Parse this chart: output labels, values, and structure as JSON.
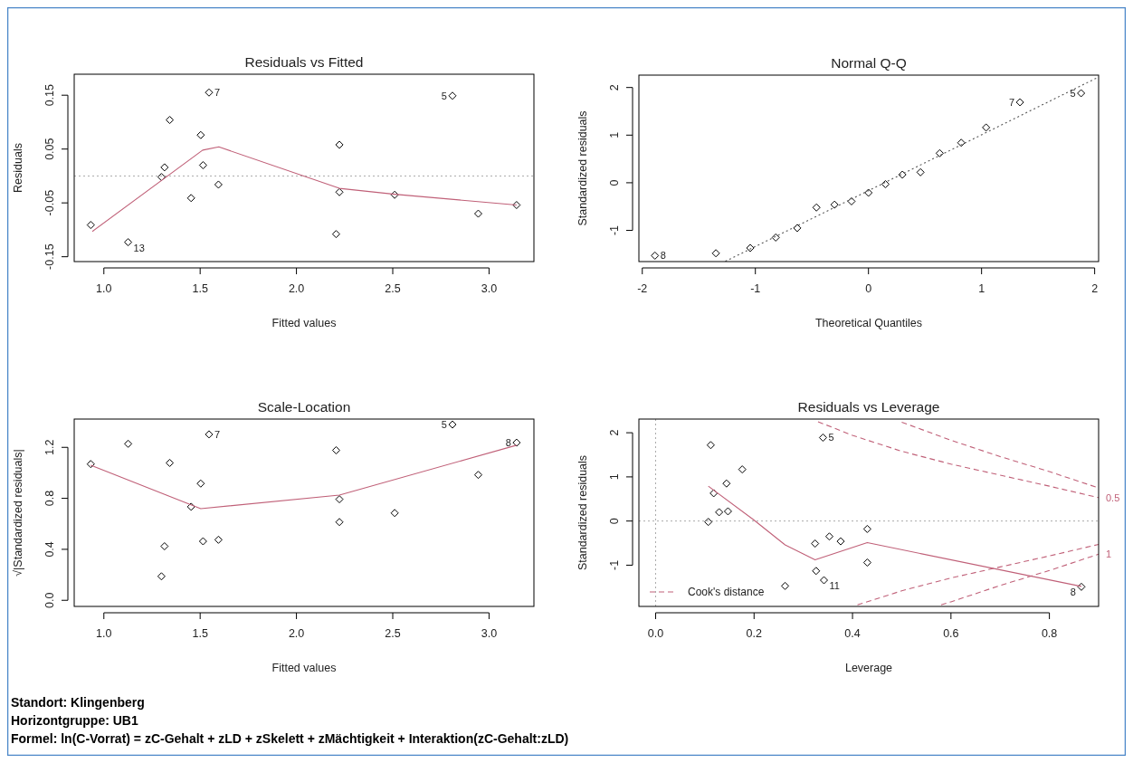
{
  "chart_data": [
    {
      "type": "scatter",
      "title": "Residuals vs Fitted",
      "xlabel": "Fitted values",
      "ylabel": "Residuals",
      "xlim": [
        0.846,
        3.233
      ],
      "ylim": [
        -0.159,
        0.189
      ],
      "xticks": [
        {
          "value": 1,
          "label": "1.0"
        },
        1.5,
        {
          "value": 2,
          "label": "2.0"
        },
        2.5,
        {
          "value": 3,
          "label": "3.0"
        }
      ],
      "yticks": [
        -0.15,
        -0.05,
        0.05,
        0.15
      ],
      "series": [
        {
          "type": "scatter",
          "marker": "diamond",
          "color": "#000000",
          "x": [
            0.932,
            1.126,
            1.299,
            1.315,
            1.342,
            1.453,
            1.503,
            1.515,
            1.546,
            1.595,
            2.206,
            2.223,
            2.223,
            2.51,
            2.81,
            2.944,
            3.143
          ],
          "values": [
            -0.091,
            -0.123,
            -0.002,
            0.016,
            0.104,
            -0.041,
            0.076,
            0.02,
            0.155,
            -0.016,
            -0.108,
            0.058,
            -0.03,
            -0.035,
            0.149,
            -0.07,
            -0.054
          ]
        },
        {
          "type": "line",
          "color": "#c06078",
          "line_style": "solid",
          "x": [
            0.94,
            1.513,
            1.597,
            2.223,
            2.51,
            3.143
          ],
          "values": [
            -0.103,
            0.048,
            0.054,
            -0.023,
            -0.034,
            -0.054
          ]
        }
      ],
      "ref_lines": [
        {
          "axis": "y",
          "value": 0,
          "color": "#aaaaaa",
          "line_style": "dotted"
        }
      ],
      "annotations": [
        {
          "text": "7",
          "x": 1.546,
          "y": 0.155
        },
        {
          "text": "5",
          "x": 2.81,
          "y": 0.149
        },
        {
          "text": "13",
          "x": 1.126,
          "y": -0.123
        }
      ]
    },
    {
      "type": "scatter",
      "title": "Normal Q-Q",
      "xlabel": "Theoretical Quantiles",
      "ylabel": "Standardized residuals",
      "xlim": [
        -2.03,
        2.035
      ],
      "ylim": [
        -1.655,
        2.26
      ],
      "xticks": [
        -2,
        -1,
        0,
        1,
        2
      ],
      "yticks": [
        -1,
        0,
        1,
        2
      ],
      "series": [
        {
          "type": "scatter",
          "marker": "diamond",
          "color": "#000000",
          "x": [
            -1.888,
            -1.349,
            -1.045,
            -0.82,
            -0.63,
            -0.46,
            -0.3,
            -0.15,
            0,
            0.15,
            0.3,
            0.46,
            0.63,
            0.82,
            1.04,
            1.34,
            1.88
          ],
          "values": [
            -1.53,
            -1.48,
            -1.37,
            -1.15,
            -0.95,
            -0.52,
            -0.46,
            -0.39,
            -0.21,
            -0.03,
            0.17,
            0.22,
            0.62,
            0.84,
            1.16,
            1.69,
            1.88
          ]
        },
        {
          "type": "line",
          "color": "#555555",
          "line_style": "dotted",
          "x": [
            -1.266,
            2.035
          ],
          "values": [
            -1.65,
            2.22
          ]
        }
      ],
      "annotations": [
        {
          "text": "8",
          "x": -1.888,
          "y": -1.53
        },
        {
          "text": "7",
          "x": 1.34,
          "y": 1.69
        },
        {
          "text": "5",
          "x": 1.88,
          "y": 1.88
        }
      ]
    },
    {
      "type": "scatter",
      "title": "Scale-Location",
      "xlabel": "Fitted values",
      "ylabel": "√|Standardized residuals|",
      "xlim": [
        0.846,
        3.233
      ],
      "ylim": [
        -0.048,
        1.422
      ],
      "xticks": [
        {
          "value": 1,
          "label": "1.0"
        },
        1.5,
        {
          "value": 2,
          "label": "2.0"
        },
        2.5,
        {
          "value": 3,
          "label": "3.0"
        }
      ],
      "yticks": [
        {
          "value": 0,
          "label": "0.0"
        },
        0.4,
        0.8,
        1.2
      ],
      "series": [
        {
          "type": "scatter",
          "marker": "diamond",
          "color": "#000000",
          "x": [
            0.932,
            1.126,
            1.299,
            1.315,
            1.342,
            1.453,
            1.503,
            1.515,
            1.546,
            1.595,
            2.206,
            2.223,
            2.223,
            2.51,
            2.81,
            2.944,
            3.143
          ],
          "values": [
            1.069,
            1.228,
            0.188,
            0.424,
            1.078,
            0.734,
            0.916,
            0.463,
            1.302,
            0.475,
            1.177,
            0.793,
            0.614,
            0.685,
            1.379,
            0.984,
            1.237
          ]
        },
        {
          "type": "line",
          "color": "#c06078",
          "line_style": "solid",
          "x": [
            0.932,
            1.503,
            2.223,
            3.143
          ],
          "values": [
            1.06,
            0.719,
            0.825,
            1.217
          ]
        }
      ],
      "annotations": [
        {
          "text": "7",
          "x": 1.546,
          "y": 1.302
        },
        {
          "text": "5",
          "x": 2.81,
          "y": 1.379
        },
        {
          "text": "8",
          "x": 3.143,
          "y": 1.237
        }
      ]
    },
    {
      "type": "scatter",
      "title": "Residuals vs Leverage",
      "xlabel": "Leverage",
      "ylabel": "Standardized residuals",
      "legend": "bottom left",
      "xlim": [
        -0.034,
        0.9
      ],
      "ylim": [
        -1.934,
        2.31
      ],
      "xticks": [
        {
          "value": 0,
          "label": "0.0"
        },
        0.2,
        0.4,
        0.6,
        0.8
      ],
      "yticks": [
        -1,
        0,
        1,
        2
      ],
      "series": [
        {
          "type": "scatter",
          "marker": "diamond",
          "color": "#000000",
          "x": [
            0.107,
            0.112,
            0.118,
            0.129,
            0.144,
            0.147,
            0.176,
            0.263,
            0.324,
            0.326,
            0.34,
            0.342,
            0.353,
            0.376,
            0.43,
            0.43,
            0.865
          ],
          "values": [
            -0.02,
            1.72,
            0.63,
            0.2,
            0.85,
            0.22,
            1.17,
            -1.47,
            -0.51,
            -1.13,
            1.89,
            -1.34,
            -0.35,
            -0.46,
            -0.18,
            -0.94,
            -1.49
          ]
        },
        {
          "type": "line",
          "color": "#c06078",
          "line_style": "solid",
          "x": [
            0.107,
            0.199,
            0.263,
            0.324,
            0.43,
            0.865
          ],
          "values": [
            0.79,
            0.03,
            -0.54,
            -0.88,
            -0.49,
            -1.48
          ]
        },
        {
          "type": "line",
          "name": "Cook's distance",
          "color": "#c06078",
          "line_style": "dashed",
          "x": [
            0.33,
            0.4,
            0.5,
            0.6,
            0.7,
            0.8,
            0.9
          ],
          "values": [
            2.25,
            1.94,
            1.58,
            1.29,
            1.04,
            0.79,
            0.53
          ]
        },
        {
          "type": "line",
          "color": "#c06078",
          "line_style": "dashed",
          "x": [
            0.5,
            0.6,
            0.7,
            0.8,
            0.9
          ],
          "values": [
            2.24,
            1.83,
            1.46,
            1.12,
            0.75
          ]
        },
        {
          "type": "line",
          "color": "#c06078",
          "line_style": "dashed",
          "x": [
            0.41,
            0.5,
            0.6,
            0.7,
            0.8,
            0.9
          ],
          "values": [
            -1.9,
            -1.58,
            -1.29,
            -1.04,
            -0.79,
            -0.53
          ]
        },
        {
          "type": "line",
          "color": "#c06078",
          "line_style": "dashed",
          "x": [
            0.58,
            0.6,
            0.7,
            0.8,
            0.9
          ],
          "values": [
            -1.9,
            -1.83,
            -1.46,
            -1.12,
            -0.75
          ]
        }
      ],
      "ref_lines": [
        {
          "axis": "y",
          "value": 0,
          "color": "#aaaaaa",
          "line_style": "dotted"
        },
        {
          "axis": "x",
          "value": 0,
          "color": "#aaaaaa",
          "line_style": "dotted"
        }
      ],
      "annotations": [
        {
          "text": "5",
          "x": 0.34,
          "y": 1.89
        },
        {
          "text": "11",
          "x": 0.342,
          "y": -1.34
        },
        {
          "text": "8",
          "x": 0.865,
          "y": -1.49
        },
        {
          "text": "0.5",
          "x": 0.9,
          "y": 0.53
        },
        {
          "text": "1",
          "x": 0.9,
          "y": -0.75
        }
      ]
    },
    {
      "type": "other",
      "annotations": [
        "Standort: Klingenberg",
        "Horizontgruppe: UB1",
        "Formel: ln(C-Vorrat) = zC-Gehalt + zLD + zSkelett + zMächtigkeit + Interaktion(zC-Gehalt:zLD)"
      ]
    }
  ]
}
